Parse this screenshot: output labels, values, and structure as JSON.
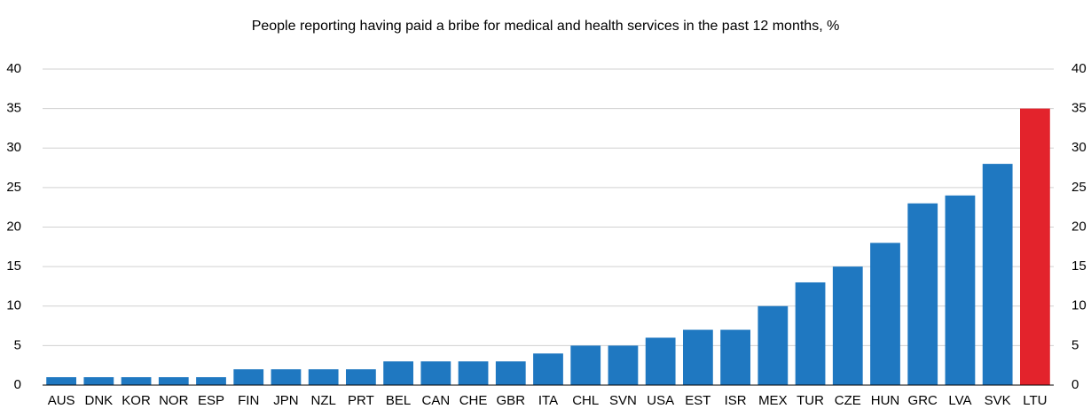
{
  "chart_data": {
    "type": "bar",
    "title": "People reporting having paid a bribe for medical and health services in the past 12 months, %",
    "categories": [
      "AUS",
      "DNK",
      "KOR",
      "NOR",
      "ESP",
      "FIN",
      "JPN",
      "NZL",
      "PRT",
      "BEL",
      "CAN",
      "CHE",
      "GBR",
      "ITA",
      "CHL",
      "SVN",
      "USA",
      "EST",
      "ISR",
      "MEX",
      "TUR",
      "CZE",
      "HUN",
      "GRC",
      "LVA",
      "SVK",
      "LTU"
    ],
    "values": [
      1,
      1,
      1,
      1,
      1,
      2,
      2,
      2,
      2,
      3,
      3,
      3,
      3,
      4,
      5,
      5,
      6,
      7,
      7,
      10,
      13,
      15,
      18,
      23,
      24,
      28,
      35
    ],
    "colors": [
      "#1f78c1",
      "#1f78c1",
      "#1f78c1",
      "#1f78c1",
      "#1f78c1",
      "#1f78c1",
      "#1f78c1",
      "#1f78c1",
      "#1f78c1",
      "#1f78c1",
      "#1f78c1",
      "#1f78c1",
      "#1f78c1",
      "#1f78c1",
      "#1f78c1",
      "#1f78c1",
      "#1f78c1",
      "#1f78c1",
      "#1f78c1",
      "#1f78c1",
      "#1f78c1",
      "#1f78c1",
      "#1f78c1",
      "#1f78c1",
      "#1f78c1",
      "#1f78c1",
      "#e3232c"
    ],
    "ylim": [
      0,
      40
    ],
    "yticks": [
      0,
      5,
      10,
      15,
      20,
      25,
      30,
      35,
      40
    ],
    "y2lim": [
      0,
      40
    ],
    "y2ticks": [
      0,
      5,
      10,
      15,
      20,
      25,
      30,
      35,
      40
    ],
    "grid": true
  }
}
